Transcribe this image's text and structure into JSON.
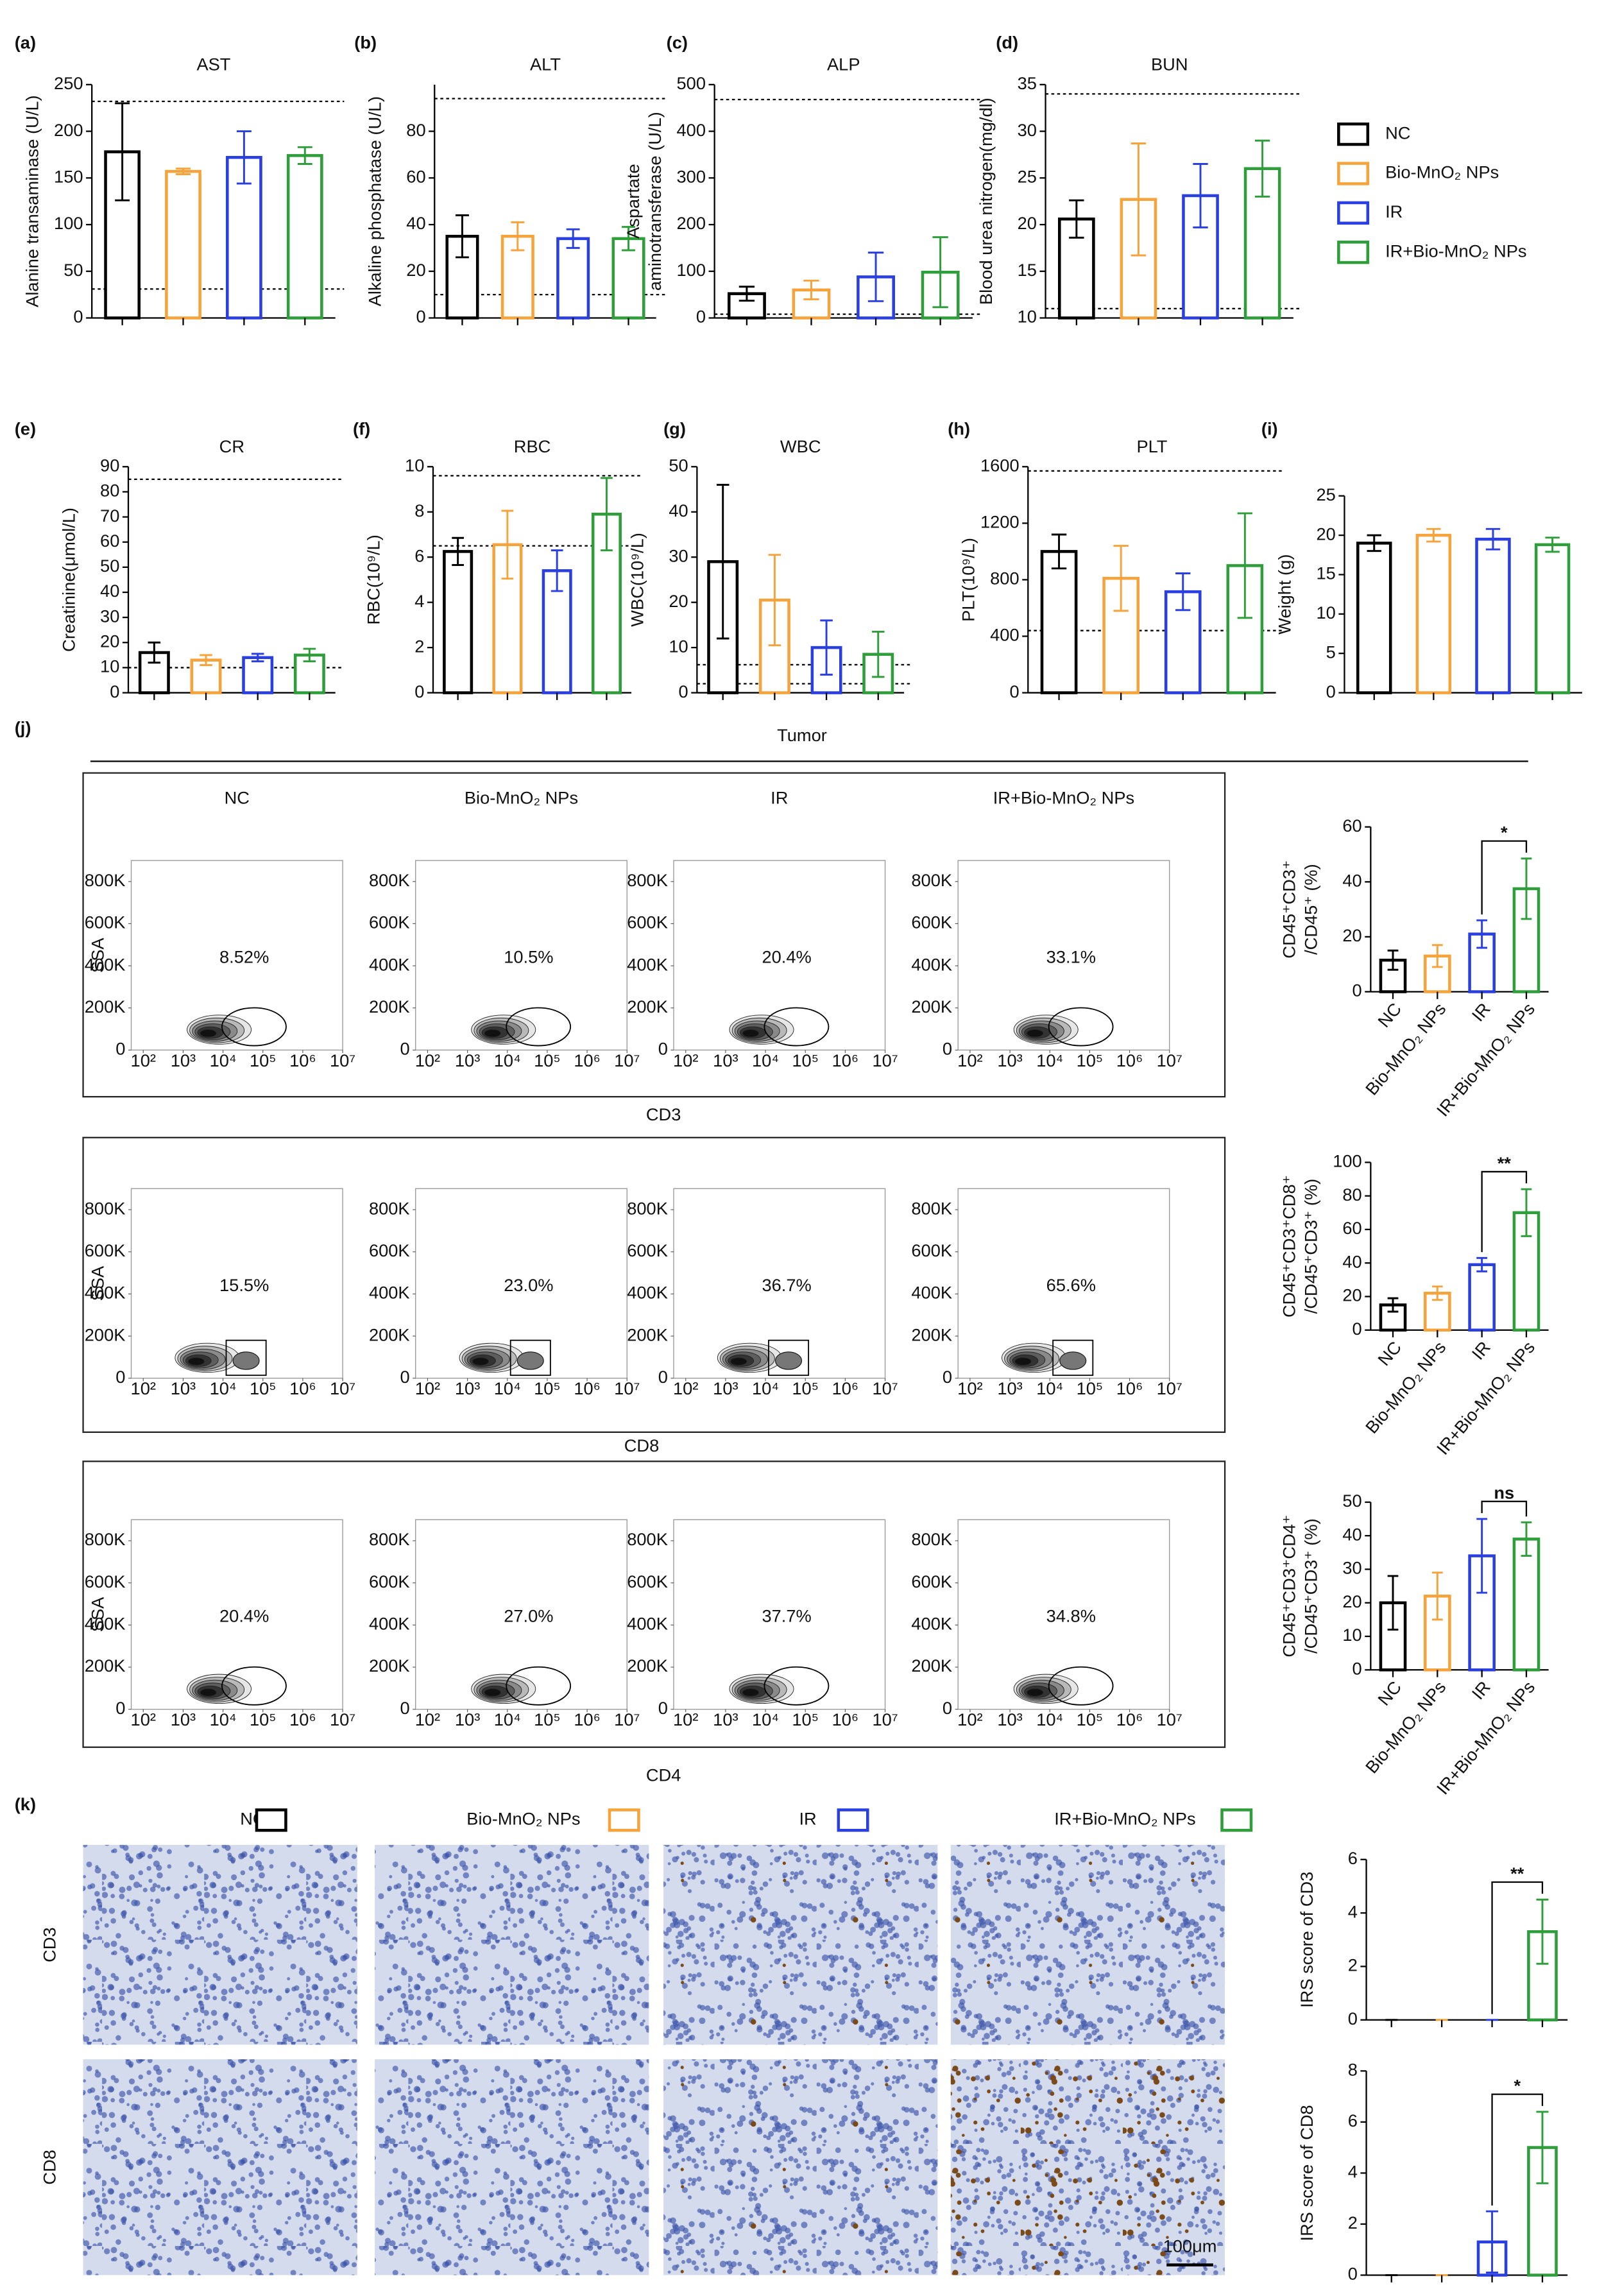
{
  "legend": {
    "labels": [
      "NC",
      "Bio-MnO₂ NPs",
      "IR",
      "IR+Bio-MnO₂ NPs"
    ],
    "colors": [
      "#000000",
      "#f5a33a",
      "#2a3fe0",
      "#2e9e3a"
    ]
  },
  "chart_data": [
    {
      "type": "bar",
      "label": "(a)",
      "title": "AST",
      "ylabel": [
        "Alanine transaminase (U/L)"
      ],
      "values": [
        178,
        157,
        172,
        174
      ],
      "errors": [
        52,
        3,
        28,
        9
      ],
      "ylim": [
        0,
        250
      ],
      "yticks": [
        0,
        50,
        100,
        150,
        200,
        250
      ],
      "reflines": [
        232,
        31
      ]
    },
    {
      "type": "bar",
      "label": "(b)",
      "title": "ALT",
      "ylabel": [
        "Alkaline phosphatase (U/L)"
      ],
      "values": [
        35,
        35,
        34,
        34
      ],
      "errors": [
        9,
        6,
        4,
        5
      ],
      "ylim": [
        0,
        100
      ],
      "yticks": [
        0,
        20,
        40,
        60,
        80
      ],
      "reflines": [
        94,
        10
      ]
    },
    {
      "type": "bar",
      "label": "(c)",
      "title": "ALP",
      "ylabel": [
        "Aspartate",
        "aminotransferase (U/L)"
      ],
      "values": [
        52,
        60,
        88,
        98
      ],
      "errors": [
        15,
        20,
        52,
        75
      ],
      "ylim": [
        0,
        500
      ],
      "yticks": [
        0,
        100,
        200,
        300,
        400,
        500
      ],
      "reflines": [
        468,
        8
      ]
    },
    {
      "type": "bar",
      "label": "(d)",
      "title": "BUN",
      "ylabel": [
        "Blood urea nitrogen(mg/dl)"
      ],
      "values": [
        20.6,
        22.7,
        23.1,
        26
      ],
      "errors": [
        2,
        6,
        3.4,
        3
      ],
      "ylim": [
        10,
        35
      ],
      "yticks": [
        10,
        15,
        20,
        25,
        30,
        35
      ],
      "reflines": [
        34,
        11
      ]
    },
    {
      "type": "bar",
      "label": "(e)",
      "title": "CR",
      "ylabel": [
        "Creatinine(μmol/L)"
      ],
      "values": [
        16,
        13,
        14,
        15
      ],
      "errors": [
        4,
        2,
        1.5,
        2.5
      ],
      "ylim": [
        0,
        90
      ],
      "yticks": [
        0,
        10,
        20,
        30,
        40,
        50,
        60,
        70,
        80,
        90
      ],
      "reflines": [
        85,
        10
      ]
    },
    {
      "type": "bar",
      "label": "(f)",
      "title": "RBC",
      "ylabel": [
        "RBC(10⁹/L)"
      ],
      "values": [
        6.25,
        6.55,
        5.4,
        7.9
      ],
      "errors": [
        0.6,
        1.5,
        0.9,
        1.6
      ],
      "ylim": [
        0,
        10
      ],
      "yticks": [
        0,
        2,
        4,
        6,
        8,
        10
      ],
      "reflines": [
        9.6,
        6.5
      ]
    },
    {
      "type": "bar",
      "label": "(g)",
      "title": "WBC",
      "ylabel": [
        "WBC(10⁹/L)"
      ],
      "values": [
        29,
        20.5,
        10,
        8.5
      ],
      "errors": [
        17,
        10,
        6,
        5
      ],
      "ylim": [
        0,
        50
      ],
      "yticks": [
        0,
        10,
        20,
        30,
        40,
        50
      ],
      "reflines": [
        6.2,
        2
      ]
    },
    {
      "type": "bar",
      "label": "(h)",
      "title": "PLT",
      "ylabel": [
        "PLT(10⁹/L)"
      ],
      "values": [
        1000,
        810,
        715,
        900
      ],
      "errors": [
        120,
        230,
        130,
        370
      ],
      "ylim": [
        0,
        1600
      ],
      "yticks": [
        0,
        400,
        800,
        1200,
        1600
      ],
      "reflines": [
        1570,
        440
      ]
    },
    {
      "type": "bar",
      "label": "(i)",
      "ylabel": [
        "Weight (g)"
      ],
      "values": [
        19,
        20,
        19.5,
        18.8
      ],
      "errors": [
        1,
        0.8,
        1.3,
        0.9
      ],
      "ylim": [
        0,
        25
      ],
      "yticks": [
        0,
        5,
        10,
        15,
        20,
        25
      ]
    },
    {
      "type": "bar",
      "ylabel": [
        "CD45⁺CD3⁺",
        "/CD45⁺ (%)"
      ],
      "categories": [
        "NC",
        "Bio-MnO₂ NPs",
        "IR",
        "IR+Bio-MnO₂ NPs"
      ],
      "values": [
        11.5,
        13,
        21,
        37.5
      ],
      "errors": [
        3.5,
        4,
        5,
        11
      ],
      "ylim": [
        0,
        60
      ],
      "yticks": [
        0,
        20,
        40,
        60
      ],
      "significance": "*"
    },
    {
      "type": "bar",
      "ylabel": [
        "CD45⁺CD3⁺CD8⁺",
        "/CD45⁺CD3⁺ (%)"
      ],
      "categories": [
        "NC",
        "Bio-MnO₂ NPs",
        "IR",
        "IR+Bio-MnO₂ NPs"
      ],
      "values": [
        15,
        22,
        39,
        70
      ],
      "errors": [
        4,
        4,
        4,
        14
      ],
      "ylim": [
        0,
        100
      ],
      "yticks": [
        0,
        20,
        40,
        60,
        80,
        100
      ],
      "significance": "**"
    },
    {
      "type": "bar",
      "ylabel": [
        "CD45⁺CD3⁺CD4⁺",
        "/CD45⁺CD3⁺ (%)"
      ],
      "categories": [
        "NC",
        "Bio-MnO₂ NPs",
        "IR",
        "IR+Bio-MnO₂ NPs"
      ],
      "values": [
        20,
        22,
        34,
        39
      ],
      "errors": [
        8,
        7,
        11,
        5
      ],
      "ylim": [
        0,
        50
      ],
      "yticks": [
        0,
        10,
        20,
        30,
        40,
        50
      ],
      "significance": "ns"
    },
    {
      "type": "bar",
      "ylabel": [
        "IRS score of CD3"
      ],
      "values": [
        0,
        0,
        0,
        3.3
      ],
      "errors": [
        0,
        0,
        0,
        1.2
      ],
      "ylim": [
        0,
        6
      ],
      "yticks": [
        0,
        2,
        4,
        6
      ],
      "significance": "**"
    },
    {
      "type": "bar",
      "ylabel": [
        "IRS score of CD8"
      ],
      "values": [
        0,
        0,
        1.3,
        5
      ],
      "errors": [
        0,
        0,
        1.2,
        1.4
      ],
      "ylim": [
        0,
        8
      ],
      "yticks": [
        0,
        2,
        4,
        6,
        8
      ],
      "significance": "*"
    }
  ],
  "flow": {
    "label": "(j)",
    "title": "Tumor",
    "ylabel": "SSA",
    "ylim": [
      0,
      900000
    ],
    "yticks": [
      0,
      {
        "value": 200000,
        "label": "200K"
      },
      {
        "value": 400000,
        "label": "400K"
      },
      {
        "value": 600000,
        "label": "600K"
      },
      {
        "value": 800000,
        "label": "800K"
      }
    ],
    "xlim": [
      50,
      10000000
    ],
    "xlog": true,
    "xticks": [
      {
        "value": 100,
        "label": "10²"
      },
      {
        "value": 1000,
        "label": "10³"
      },
      {
        "value": 10000,
        "label": "10⁴"
      },
      {
        "value": 100000,
        "label": "10⁵"
      },
      {
        "value": 1000000,
        "label": "10⁶"
      },
      {
        "value": 10000000,
        "label": "10⁷"
      }
    ],
    "rows": [
      {
        "marker": "CD3",
        "percents": [
          "8.52%",
          "10.5%",
          "20.4%",
          "33.1%"
        ]
      },
      {
        "marker": "CD8",
        "percents": [
          "15.5%",
          "23.0%",
          "36.7%",
          "65.6%"
        ]
      },
      {
        "marker": "CD4",
        "percents": [
          "20.4%",
          "27.0%",
          "37.7%",
          "34.8%"
        ]
      }
    ]
  },
  "ihc": {
    "label": "(k)",
    "rows": [
      "CD3",
      "CD8"
    ],
    "scale": "100μm"
  }
}
